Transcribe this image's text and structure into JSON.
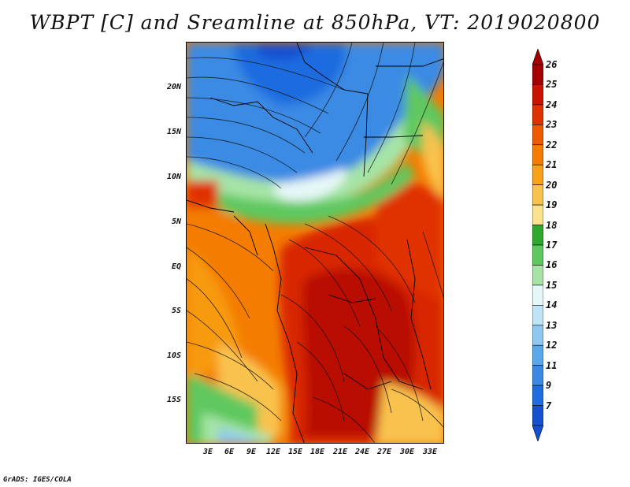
{
  "title": "WBPT [C] and Sreamline at 850hPa, VT: 2019020800",
  "footer": "GrADS: IGES/COLA",
  "lat_labels": [
    "20N",
    "15N",
    "10N",
    "5N",
    "EQ",
    "5S",
    "10S",
    "15S"
  ],
  "lon_labels": [
    "3E",
    "6E",
    "9E",
    "12E",
    "15E",
    "18E",
    "21E",
    "24E",
    "27E",
    "30E",
    "33E"
  ],
  "colorbar": {
    "labels": [
      "26",
      "25",
      "24",
      "23",
      "22",
      "21",
      "20",
      "19",
      "18",
      "17",
      "16",
      "15",
      "14",
      "13",
      "12",
      "11",
      "9",
      "7"
    ],
    "colors": [
      "#a50000",
      "#c81400",
      "#e03200",
      "#ee5a00",
      "#f47c00",
      "#f7a21a",
      "#f9c24d",
      "#fbe28c",
      "#2ea82e",
      "#5ec85e",
      "#a6e4a6",
      "#e6f7f7",
      "#bfe4f7",
      "#8ec8f0",
      "#5aa8ec",
      "#3a8ae4",
      "#1f6ce0",
      "#1450d0"
    ]
  },
  "legend_colors": {
    "cold": "#1f6ce0",
    "cool": "#8ec8f0",
    "green": "#5ec85e",
    "warm": "#f47c00",
    "hot": "#c81400"
  }
}
